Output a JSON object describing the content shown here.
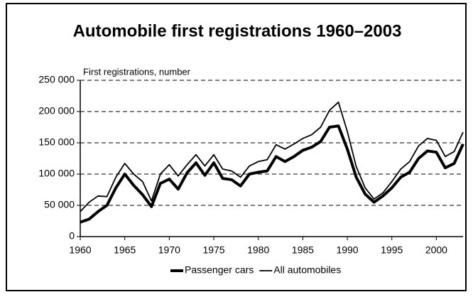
{
  "chart_data": {
    "type": "line",
    "title": "Automobile first registrations 1960–2003",
    "y_label": "First registrations, number",
    "x": [
      1960,
      1961,
      1962,
      1963,
      1964,
      1965,
      1966,
      1967,
      1968,
      1969,
      1970,
      1971,
      1972,
      1973,
      1974,
      1975,
      1976,
      1977,
      1978,
      1979,
      1980,
      1981,
      1982,
      1983,
      1984,
      1985,
      1986,
      1987,
      1988,
      1989,
      1990,
      1991,
      1992,
      1993,
      1994,
      1995,
      1996,
      1997,
      1998,
      1999,
      2000,
      2001,
      2002,
      2003
    ],
    "series": [
      {
        "name": "Passenger cars",
        "color": "#000000",
        "values": [
          23000,
          28000,
          40000,
          50000,
          78000,
          100000,
          82000,
          67000,
          48000,
          85000,
          92000,
          76000,
          102000,
          118000,
          98000,
          118000,
          93000,
          91000,
          81000,
          100000,
          103000,
          105000,
          128000,
          120000,
          128000,
          138000,
          143000,
          152000,
          175000,
          177000,
          140000,
          95000,
          68000,
          55000,
          65000,
          78000,
          95000,
          103000,
          125000,
          137000,
          135000,
          110000,
          117000,
          148000
        ]
      },
      {
        "name": "All automobiles",
        "color": "#000000",
        "values": [
          40000,
          55000,
          65000,
          64000,
          95000,
          117000,
          100000,
          88000,
          57000,
          100000,
          115000,
          97000,
          115000,
          131000,
          113000,
          131000,
          108000,
          105000,
          95000,
          113000,
          120000,
          123000,
          147000,
          140000,
          148000,
          157000,
          163000,
          175000,
          202000,
          215000,
          168000,
          112000,
          78000,
          60000,
          70000,
          88000,
          108000,
          120000,
          145000,
          157000,
          154000,
          128000,
          136000,
          167000
        ]
      }
    ],
    "xlim": [
      1960,
      2003
    ],
    "xticks": [
      1960,
      1965,
      1970,
      1975,
      1980,
      1985,
      1990,
      1995,
      2000
    ],
    "ylim": [
      0,
      250000
    ],
    "yticks": [
      0,
      {
        "value": 50000,
        "label": "50 000"
      },
      {
        "value": 100000,
        "label": "100 000"
      },
      {
        "value": 150000,
        "label": "150 000"
      },
      {
        "value": 200000,
        "label": "200 000"
      },
      {
        "value": 250000,
        "label": "250 000"
      }
    ],
    "grid": true,
    "legend": "bottom"
  }
}
